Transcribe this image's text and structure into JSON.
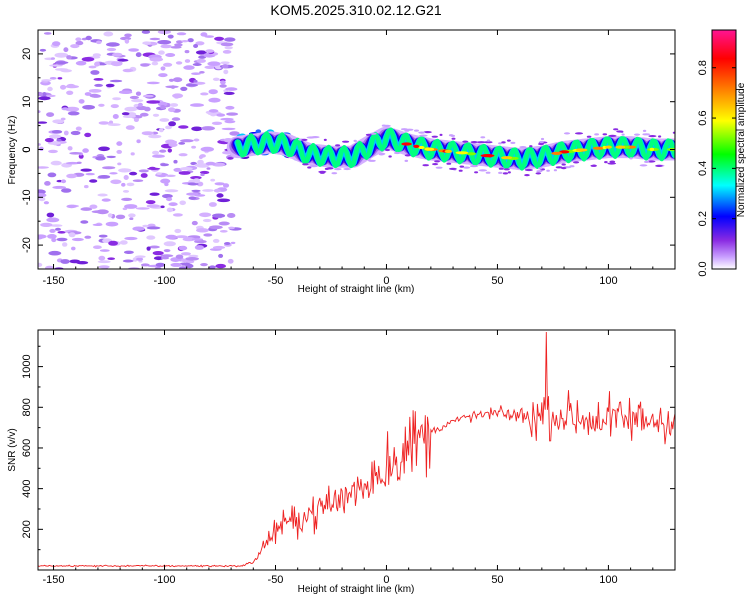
{
  "chart_data": [
    {
      "type": "heatmap",
      "title": "KOM5.2025.310.02.12.G21",
      "xlabel": "Height of straight line (km)",
      "ylabel": "Frequency (Hz)",
      "xlim": [
        -157,
        130
      ],
      "ylim": [
        -25,
        25
      ],
      "xticks": [
        "-150",
        "-100",
        "-50",
        "0",
        "50",
        "100"
      ],
      "yticks": [
        "-20",
        "-10",
        "0",
        "10",
        "20"
      ],
      "colorbar": {
        "label": "Normalized spectral amplitude",
        "range": [
          0,
          0.95
        ],
        "ticks": [
          "0.0",
          "0.2",
          "0.4",
          "0.6",
          "0.8"
        ],
        "colors": [
          "#ffffff",
          "#c9a0ff",
          "#8a2be2",
          "#0000ff",
          "#00ffff",
          "#00ff00",
          "#ffff00",
          "#ff8000",
          "#ff0000",
          "#ff1493"
        ]
      },
      "ridge": {
        "x": [
          -67,
          -60,
          -52,
          -45,
          -35,
          -25,
          -15,
          -8,
          0,
          10,
          20,
          30,
          40,
          50,
          60,
          70,
          80,
          90,
          100,
          110,
          120,
          130
        ],
        "y": [
          0.5,
          1.0,
          1.5,
          1.0,
          -1.0,
          -1.5,
          -1.5,
          0.5,
          2.5,
          1.0,
          0.0,
          -0.5,
          -1.0,
          -1.5,
          -2.0,
          -1.5,
          -0.5,
          0.0,
          0.5,
          0.5,
          0.0,
          0.0
        ]
      }
    },
    {
      "type": "line",
      "xlabel": "Height of straight line (km)",
      "ylabel": "SNR (v/v)",
      "xlim": [
        -157,
        130
      ],
      "ylim": [
        0,
        1180
      ],
      "xticks": [
        "-150",
        "-100",
        "-50",
        "0",
        "50",
        "100"
      ],
      "yticks": [
        "200",
        "400",
        "600",
        "800",
        "1000"
      ],
      "series_color": "#ee2222",
      "envelope": {
        "x": [
          -157,
          -65,
          -60,
          -55,
          -50,
          -40,
          -30,
          -20,
          -10,
          0,
          10,
          20,
          30,
          40,
          50,
          60,
          65,
          70,
          80,
          90,
          100,
          110,
          120,
          130
        ],
        "y": [
          20,
          20,
          40,
          120,
          200,
          250,
          300,
          350,
          420,
          520,
          600,
          680,
          730,
          760,
          770,
          760,
          750,
          760,
          760,
          740,
          740,
          740,
          740,
          740
        ]
      },
      "peak": {
        "x": 72,
        "y": 1170
      }
    }
  ]
}
